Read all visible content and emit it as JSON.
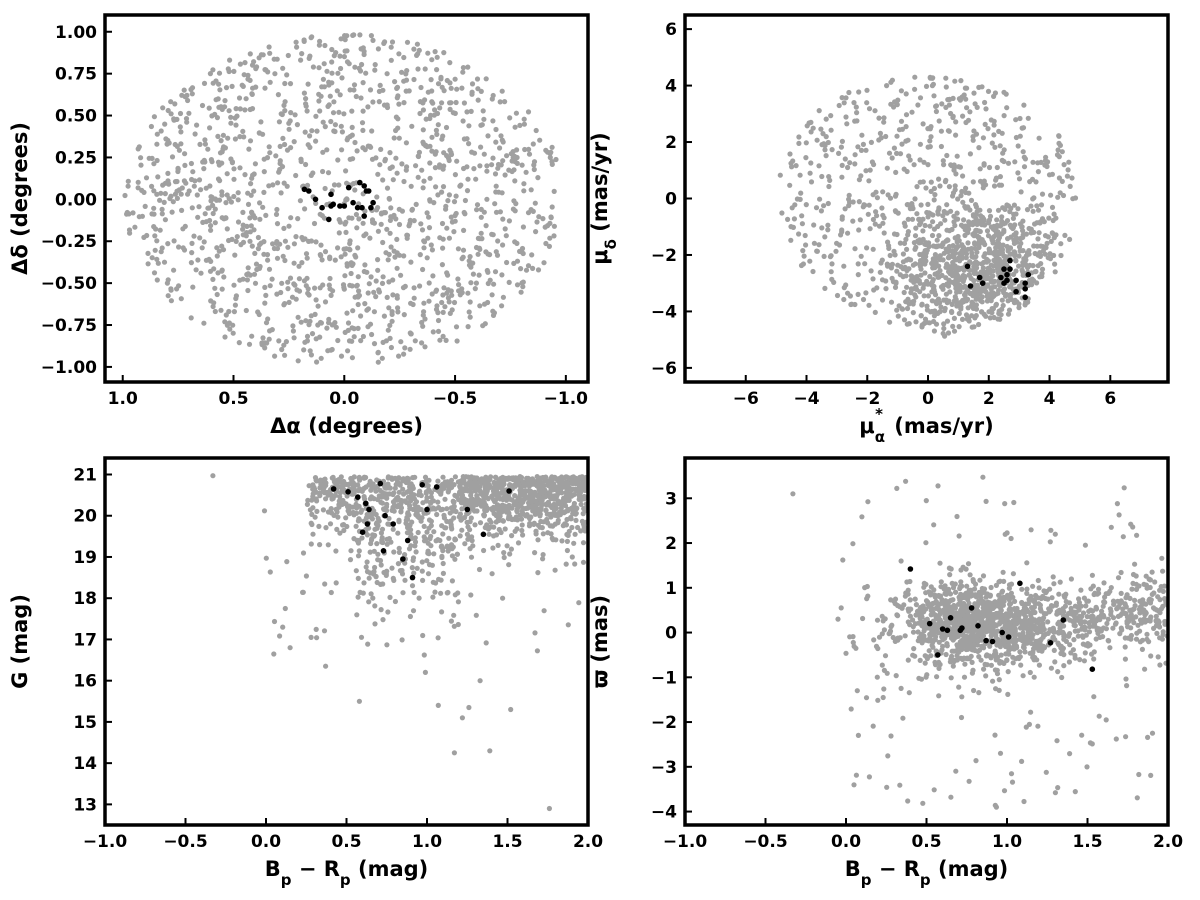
{
  "colors": {
    "field": "#a0a0a0",
    "members": "#000000",
    "axes": "#000000"
  },
  "chart_data": [
    {
      "id": "sky",
      "type": "scatter",
      "xlabel": "Δα (degrees)",
      "ylabel": "Δδ (degrees)",
      "xlim": [
        1.08,
        -1.1
      ],
      "ylim": [
        -1.09,
        1.1
      ],
      "x_inverted": true,
      "grid": false,
      "xticks": [
        1.0,
        0.5,
        0.0,
        -0.5,
        -1.0
      ],
      "xtick_labels": [
        "1.0",
        "0.5",
        "0.0",
        "−0.5",
        "−1.0"
      ],
      "yticks": [
        1.0,
        0.75,
        0.5,
        0.25,
        0.0,
        -0.25,
        -0.5,
        -0.75,
        -1.0
      ],
      "ytick_labels": [
        "1.00",
        "0.75",
        "0.50",
        "0.25",
        "0.00",
        "−0.25",
        "−0.50",
        "−0.75",
        "−1.00"
      ],
      "series": [
        {
          "role": "field",
          "color": "#a0a0a0",
          "distribution": "uniform disk of radius 1.0 deg",
          "n": 1400,
          "center": [
            0,
            0
          ],
          "radius": 1.0
        },
        {
          "role": "members",
          "color": "#000000",
          "points": [
            [
              0.18,
              0.06
            ],
            [
              0.16,
              0.05
            ],
            [
              0.13,
              0.0
            ],
            [
              0.1,
              -0.05
            ],
            [
              0.07,
              -0.12
            ],
            [
              0.06,
              -0.04
            ],
            [
              0.05,
              -0.03
            ],
            [
              0.06,
              0.03
            ],
            [
              0.02,
              -0.04
            ],
            [
              0.0,
              -0.04
            ],
            [
              -0.02,
              0.07
            ],
            [
              -0.04,
              -0.02
            ],
            [
              -0.06,
              -0.05
            ],
            [
              -0.07,
              0.1
            ],
            [
              -0.08,
              -0.05
            ],
            [
              -0.09,
              0.08
            ],
            [
              -0.1,
              0.05
            ],
            [
              -0.09,
              -0.1
            ],
            [
              -0.11,
              0.05
            ],
            [
              -0.12,
              -0.05
            ],
            [
              -0.13,
              -0.02
            ]
          ]
        }
      ]
    },
    {
      "id": "proper-motion",
      "type": "scatter",
      "xlabel": "μα* (mas/yr)",
      "ylabel": "μδ (mas/yr)",
      "xlim": [
        -8.0,
        7.9
      ],
      "ylim": [
        -6.5,
        6.5
      ],
      "grid": false,
      "xticks": [
        -6,
        -4,
        -2,
        0,
        2,
        4,
        6
      ],
      "xtick_labels": [
        "−6",
        "−4",
        "−2",
        "0",
        "2",
        "4",
        "6"
      ],
      "yticks": [
        -6,
        -4,
        -2,
        0,
        2,
        4,
        6
      ],
      "ytick_labels": [
        "−6",
        "−4",
        "−2",
        "0",
        "2",
        "4",
        "6"
      ],
      "series": [
        {
          "role": "field",
          "color": "#a0a0a0",
          "distribution": "field stars within radius 5 mas/yr of (0, 0), clipped at μδ ≈ −4.9, denser concentration near (1.5, −2.5)",
          "n": 1450
        },
        {
          "role": "members",
          "color": "#000000",
          "points": [
            [
              1.3,
              -2.4
            ],
            [
              1.7,
              -2.8
            ],
            [
              1.8,
              -3.0
            ],
            [
              1.4,
              -3.1
            ],
            [
              2.4,
              -2.8
            ],
            [
              2.5,
              -2.5
            ],
            [
              2.6,
              -2.7
            ],
            [
              2.6,
              -2.9
            ],
            [
              2.7,
              -2.2
            ],
            [
              2.7,
              -2.5
            ],
            [
              2.9,
              -2.9
            ],
            [
              3.2,
              -3.0
            ],
            [
              3.2,
              -3.2
            ],
            [
              3.2,
              -3.5
            ],
            [
              3.3,
              -2.7
            ],
            [
              2.5,
              -3.0
            ],
            [
              2.9,
              -3.3
            ]
          ]
        }
      ]
    },
    {
      "id": "cmd",
      "type": "scatter",
      "xlabel": "Bp − Rp (mag)",
      "ylabel": "G (mag)",
      "xlim": [
        -1.0,
        2.0
      ],
      "ylim": [
        12.5,
        21.4
      ],
      "grid": false,
      "xticks": [
        -1.0,
        -0.5,
        0.0,
        0.5,
        1.0,
        1.5,
        2.0
      ],
      "xtick_labels": [
        "−1.0",
        "−0.5",
        "0.0",
        "0.5",
        "1.0",
        "1.5",
        "2.0"
      ],
      "yticks": [
        13,
        14,
        15,
        16,
        17,
        18,
        19,
        20,
        21
      ],
      "ytick_labels": [
        "13",
        "14",
        "15",
        "16",
        "17",
        "18",
        "19",
        "20",
        "21"
      ],
      "series": [
        {
          "role": "field",
          "color": "#a0a0a0",
          "distribution": "field stars, colour 0–2 mag, G mostly 18–21 mag with sparse tail to G ≈ 13",
          "n": 1500
        },
        {
          "role": "members",
          "color": "#000000",
          "points": [
            [
              0.42,
              20.65
            ],
            [
              0.51,
              20.58
            ],
            [
              0.57,
              20.45
            ],
            [
              0.62,
              20.3
            ],
            [
              0.71,
              20.78
            ],
            [
              0.64,
              20.15
            ],
            [
              0.63,
              19.8
            ],
            [
              0.6,
              19.6
            ],
            [
              0.74,
              20.0
            ],
            [
              0.79,
              19.8
            ],
            [
              0.88,
              19.4
            ],
            [
              0.73,
              19.15
            ],
            [
              0.85,
              18.95
            ],
            [
              0.91,
              18.5
            ],
            [
              0.97,
              20.75
            ],
            [
              1.0,
              20.15
            ],
            [
              1.06,
              20.7
            ],
            [
              1.25,
              20.15
            ],
            [
              1.35,
              19.55
            ],
            [
              1.51,
              20.6
            ]
          ]
        }
      ]
    },
    {
      "id": "parallax",
      "type": "scatter",
      "xlabel": "Bp − Rp (mag)",
      "ylabel": "ϖ (mas)",
      "xlim": [
        -1.0,
        2.0
      ],
      "ylim": [
        -4.3,
        3.9
      ],
      "grid": false,
      "xticks": [
        -1.0,
        -0.5,
        0.0,
        0.5,
        1.0,
        1.5,
        2.0
      ],
      "xtick_labels": [
        "−1.0",
        "−0.5",
        "0.0",
        "0.5",
        "1.0",
        "1.5",
        "2.0"
      ],
      "yticks": [
        -4,
        -3,
        -2,
        -1,
        0,
        1,
        2,
        3
      ],
      "ytick_labels": [
        "−4",
        "−3",
        "−2",
        "−1",
        "0",
        "1",
        "2",
        "3"
      ],
      "series": [
        {
          "role": "field",
          "color": "#a0a0a0",
          "distribution": "field stars, colour 0–2 mag, parallax mostly within ±1 mas, denser near (0.75, 0.2)",
          "n": 1500
        },
        {
          "role": "members",
          "color": "#000000",
          "points": [
            [
              0.4,
              1.42
            ],
            [
              0.52,
              0.2
            ],
            [
              0.57,
              -0.5
            ],
            [
              0.6,
              0.08
            ],
            [
              0.63,
              0.05
            ],
            [
              0.65,
              0.33
            ],
            [
              0.71,
              0.05
            ],
            [
              0.72,
              0.1
            ],
            [
              0.78,
              0.55
            ],
            [
              0.82,
              0.15
            ],
            [
              0.87,
              -0.18
            ],
            [
              0.91,
              -0.2
            ],
            [
              0.97,
              0.0
            ],
            [
              1.01,
              -0.1
            ],
            [
              1.08,
              1.1
            ],
            [
              1.27,
              -0.23
            ],
            [
              1.35,
              0.28
            ],
            [
              1.53,
              -0.82
            ]
          ]
        }
      ]
    }
  ]
}
